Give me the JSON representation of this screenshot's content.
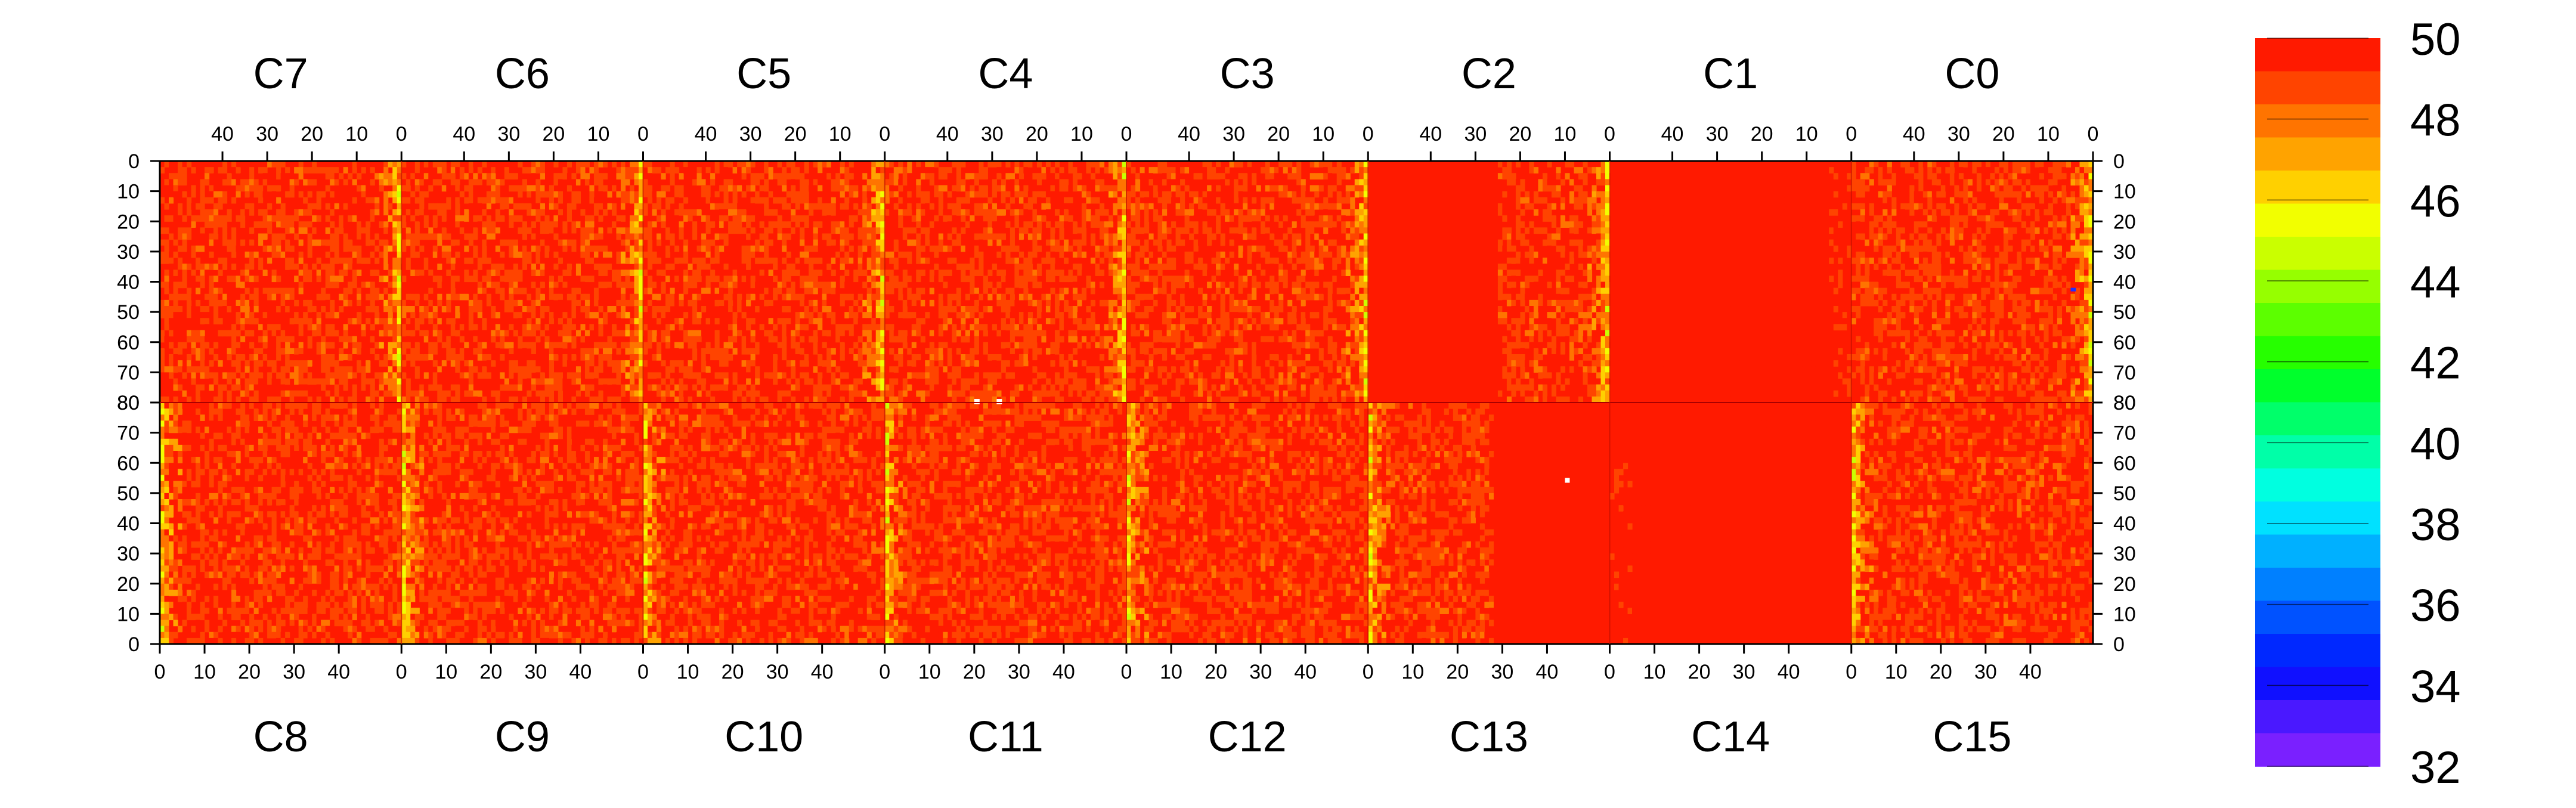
{
  "chart_data": {
    "type": "heatmap",
    "title": "",
    "xlabel": "",
    "ylabel": "",
    "top_panels": [
      {
        "label": "C7",
        "x_ticks": [
          "40",
          "30",
          "20",
          "10",
          "0"
        ],
        "x_reversed": true
      },
      {
        "label": "C6",
        "x_ticks": [
          "40",
          "30",
          "20",
          "10",
          "0"
        ],
        "x_reversed": true
      },
      {
        "label": "C5",
        "x_ticks": [
          "40",
          "30",
          "20",
          "10",
          "0"
        ],
        "x_reversed": true
      },
      {
        "label": "C4",
        "x_ticks": [
          "40",
          "30",
          "20",
          "10",
          "0"
        ],
        "x_reversed": true
      },
      {
        "label": "C3",
        "x_ticks": [
          "40",
          "30",
          "20",
          "10",
          "0"
        ],
        "x_reversed": true
      },
      {
        "label": "C2",
        "x_ticks": [
          "40",
          "30",
          "20",
          "10",
          "0"
        ],
        "x_reversed": true
      },
      {
        "label": "C1",
        "x_ticks": [
          "40",
          "30",
          "20",
          "10",
          "0"
        ],
        "x_reversed": true
      },
      {
        "label": "C0",
        "x_ticks": [
          "40",
          "30",
          "20",
          "10",
          "0"
        ],
        "x_reversed": true
      }
    ],
    "bottom_panels": [
      {
        "label": "C8",
        "x_ticks": [
          "0",
          "10",
          "20",
          "30",
          "40"
        ]
      },
      {
        "label": "C9",
        "x_ticks": [
          "0",
          "10",
          "20",
          "30",
          "40"
        ]
      },
      {
        "label": "C10",
        "x_ticks": [
          "0",
          "10",
          "20",
          "30",
          "40"
        ]
      },
      {
        "label": "C11",
        "x_ticks": [
          "0",
          "10",
          "20",
          "30",
          "40"
        ]
      },
      {
        "label": "C12",
        "x_ticks": [
          "0",
          "10",
          "20",
          "30",
          "40"
        ]
      },
      {
        "label": "C13",
        "x_ticks": [
          "0",
          "10",
          "20",
          "30",
          "40"
        ]
      },
      {
        "label": "C14",
        "x_ticks": [
          "0",
          "10",
          "20",
          "30",
          "40"
        ]
      },
      {
        "label": "C15",
        "x_ticks": [
          "0",
          "10",
          "20",
          "30",
          "40"
        ]
      }
    ],
    "x_range_per_panel": [
      0,
      54
    ],
    "y_ticks_top": [
      "0",
      "10",
      "20",
      "30",
      "40",
      "50",
      "60",
      "70",
      "80"
    ],
    "y_ticks_bottom": [
      "80",
      "70",
      "60",
      "50",
      "40",
      "30",
      "20",
      "10",
      "0"
    ],
    "y_range_per_half": [
      0,
      80
    ],
    "colorbar": {
      "min": 32,
      "max": 50,
      "tick_labels": [
        "50",
        "48",
        "46",
        "44",
        "42",
        "40",
        "38",
        "36",
        "34",
        "32"
      ],
      "colors": [
        "#ff1a00",
        "#ff4400",
        "#ff7400",
        "#ffa300",
        "#ffd000",
        "#f2ff00",
        "#caff00",
        "#96ff00",
        "#5cff00",
        "#26ff00",
        "#00ff2c",
        "#00ff6a",
        "#00ffa8",
        "#00ffe0",
        "#00e1ff",
        "#00b0ff",
        "#0080ff",
        "#0052ff",
        "#0028ff",
        "#1010ff",
        "#4a18ff",
        "#7a20ff"
      ]
    },
    "column_profile": {
      "description_values": "mean value at bin-column offset from panel edge (0 = channel 0 edge)",
      "edge_mean": [
        46.5,
        47.6,
        48.3,
        48.8,
        49.0
      ],
      "interior_mean": 49.2,
      "uniform_region": "C13 from x=28 to C14 and C1/C2 right half ≈ 50"
    },
    "notable_cells": [
      "white dots at top half row 80 near C4 x=20 and x=25",
      "white dot near C13 bottom x=44 y=55",
      "blue dot near C0 x=4 y=42"
    ]
  }
}
